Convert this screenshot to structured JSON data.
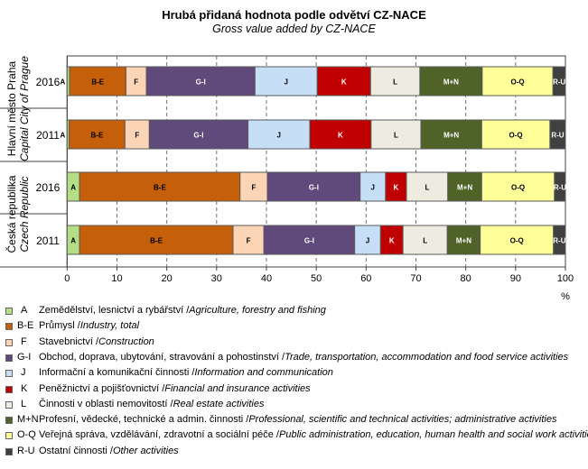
{
  "chart_data": {
    "type": "bar",
    "orientation": "horizontal-stacked-100",
    "title": "Hrubá přidaná hodnota podle odvětví CZ-NACE",
    "subtitle": "Gross value added by CZ-NACE",
    "xlabel": "%",
    "xlim": [
      0,
      100
    ],
    "xticks": [
      "0",
      "10",
      "20",
      "30",
      "40",
      "50",
      "60",
      "70",
      "80",
      "90",
      "100"
    ],
    "grid": "vertical dashed",
    "legend_placement": "bottom",
    "groups": [
      {
        "name": "Hlavní město Praha",
        "name_en": "Capital City of Prague",
        "rows": [
          "2016",
          "2011"
        ]
      },
      {
        "name": "Česká republika",
        "name_en": "Czech Republic",
        "rows": [
          "2016",
          "2011"
        ]
      }
    ],
    "categories": [
      "Praha 2016",
      "Praha 2011",
      "ČR 2016",
      "ČR 2011"
    ],
    "series": [
      {
        "code": "A",
        "label_cz": "Zemědělství, lesnictví a rybářství",
        "label_en": "Agriculture, forestry and fishing",
        "color": "#b3de84",
        "text_color": "#000",
        "values": [
          0.5,
          0.4,
          2.5,
          2.5
        ]
      },
      {
        "code": "B-E",
        "label_cz": "Průmysl",
        "label_en": "Industry, total",
        "color": "#c65f0a",
        "text_color": "#000",
        "values": [
          11.3,
          11.2,
          32.2,
          30.8
        ]
      },
      {
        "code": "F",
        "label_cz": "Stavebnictví",
        "label_en": "Construction",
        "color": "#fbd5b5",
        "text_color": "#000",
        "values": [
          4.1,
          4.9,
          5.5,
          6.2
        ]
      },
      {
        "code": "G-I",
        "label_cz": "Obchod, doprava, ubytování, stravování a pohostinství",
        "label_en": "Trade, transportation, accommodation and food service activities",
        "color": "#604a7b",
        "text_color": "#fff",
        "values": [
          21.8,
          19.8,
          18.6,
          18.2
        ]
      },
      {
        "code": "J",
        "label_cz": "Informační a komunikační činnosti",
        "label_en": "Information and communication",
        "color": "#c6dff6",
        "text_color": "#000",
        "values": [
          12.5,
          12.4,
          5.1,
          5.2
        ]
      },
      {
        "code": "K",
        "label_cz": "Peněžnictví a pojišťovnictví",
        "label_en": "Financial and insurance activities",
        "color": "#c00000",
        "text_color": "#fff",
        "values": [
          10.7,
          12.3,
          4.2,
          4.5
        ]
      },
      {
        "code": "L",
        "label_cz": "Činnosti v oblasti nemovitostí",
        "label_en": "Real estate activities",
        "color": "#eeebe1",
        "text_color": "#000",
        "values": [
          9.9,
          10.0,
          8.3,
          8.9
        ]
      },
      {
        "code": "M+N",
        "label_cz": "Profesní, vědecké, technické a admin. činnosti",
        "label_en": "Professional, scientific and technical activities; administrative activities",
        "color": "#4f6228",
        "text_color": "#fff",
        "values": [
          12.5,
          12.2,
          6.8,
          6.6
        ]
      },
      {
        "code": "O-Q",
        "label_cz": "Veřejná správa, vzdělávání, zdravotní a sociální péče",
        "label_en": "Public administration, education, human health and social work activities",
        "color": "#ffff99",
        "text_color": "#000",
        "values": [
          14.2,
          13.7,
          14.6,
          14.7
        ]
      },
      {
        "code": "R-U",
        "label_cz": "Ostatní činnosti",
        "label_en": "Other activities",
        "color": "#404040",
        "text_color": "#fff",
        "values": [
          2.5,
          3.1,
          2.2,
          2.4
        ]
      }
    ]
  }
}
